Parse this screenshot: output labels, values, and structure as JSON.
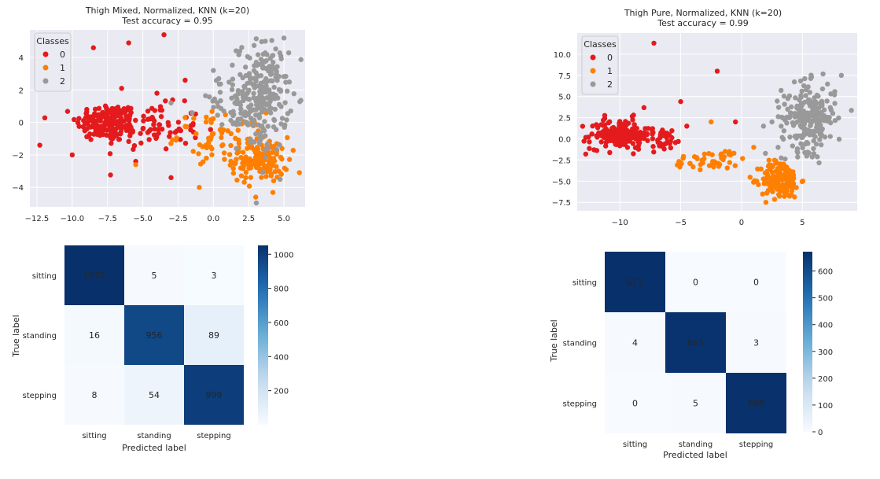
{
  "chart_data": [
    {
      "type": "scatter",
      "title": "Thigh Mixed, Normalized, KNN (k=20)",
      "subtitle": "Test accuracy = 0.95",
      "xlim": [
        -13,
        6.5
      ],
      "ylim": [
        -5.2,
        5.7
      ],
      "xticks": [
        -12.5,
        -10.0,
        -7.5,
        -5.0,
        -2.5,
        0.0,
        2.5,
        5.0
      ],
      "xtick_labels": [
        "−12.5",
        "−10.0",
        "−7.5",
        "−5.0",
        "−2.5",
        "0.0",
        "2.5",
        "5.0"
      ],
      "yticks": [
        -4,
        -2,
        0,
        2,
        4
      ],
      "ytick_labels": [
        "−4",
        "−2",
        "0",
        "2",
        "4"
      ],
      "grid": true,
      "legend": {
        "title": "Classes",
        "placement": "top-left",
        "entries": [
          "0",
          "1",
          "2"
        ]
      },
      "series": [
        {
          "name": "0",
          "color": "#e41a1c",
          "clusters": [
            [
              -7.5,
              0.0,
              1.1,
              0.6,
              170
            ],
            [
              -4.5,
              -0.3,
              1.8,
              0.7,
              90
            ]
          ],
          "outliers": [
            [
              -12.3,
              -1.4
            ],
            [
              -10.0,
              -2.0
            ],
            [
              -8.5,
              4.6
            ],
            [
              -6.0,
              4.9
            ],
            [
              -3.5,
              5.4
            ],
            [
              -5.5,
              -2.4
            ],
            [
              -3.0,
              -3.4
            ],
            [
              -2.0,
              2.6
            ],
            [
              -4.0,
              1.8
            ],
            [
              -6.5,
              2.1
            ]
          ]
        },
        {
          "name": "1",
          "color": "#ff7f00",
          "clusters": [
            [
              3.3,
              -2.3,
              1.0,
              0.7,
              150
            ],
            [
              0.5,
              -0.8,
              1.5,
              0.7,
              60
            ]
          ],
          "outliers": [
            [
              -1.0,
              -4.0
            ],
            [
              3.0,
              -4.6
            ],
            [
              -5.5,
              -2.6
            ],
            [
              -2.0,
              0.3
            ],
            [
              -0.5,
              -2.2
            ]
          ]
        },
        {
          "name": "2",
          "color": "#999999",
          "clusters": [
            [
              3.5,
              1.6,
              0.9,
              1.7,
              230
            ],
            [
              1.0,
              1.2,
              1.2,
              0.8,
              40
            ]
          ],
          "outliers": [
            [
              5.0,
              5.2
            ],
            [
              0.0,
              3.2
            ],
            [
              -1.5,
              0.6
            ],
            [
              -3.0,
              1.2
            ]
          ]
        }
      ]
    },
    {
      "type": "scatter",
      "title": "Thigh Pure, Normalized, KNN (k=20)",
      "subtitle": "Test accuracy = 0.99",
      "xlim": [
        -13.5,
        9.5
      ],
      "ylim": [
        -8.5,
        12.5
      ],
      "xticks": [
        -10,
        -5,
        0,
        5
      ],
      "xtick_labels": [
        "−10",
        "−5",
        "0",
        "5"
      ],
      "yticks": [
        -7.5,
        -5.0,
        -2.5,
        0.0,
        2.5,
        5.0,
        7.5,
        10.0
      ],
      "ytick_labels": [
        "−7.5",
        "−5.0",
        "−2.5",
        "0.0",
        "2.5",
        "5.0",
        "7.5",
        "10.0"
      ],
      "grid": true,
      "legend": {
        "title": "Classes",
        "placement": "top-left",
        "entries": [
          "0",
          "1",
          "2"
        ]
      },
      "series": [
        {
          "name": "0",
          "color": "#e41a1c",
          "clusters": [
            [
              -10.0,
              0.6,
              1.2,
              0.9,
              170
            ],
            [
              -6.5,
              0.0,
              1.0,
              0.7,
              40
            ]
          ],
          "outliers": [
            [
              -7.2,
              11.3
            ],
            [
              -2.0,
              8.0
            ],
            [
              -5.0,
              4.4
            ],
            [
              -12.8,
              -1.8
            ],
            [
              -0.5,
              2.0
            ],
            [
              -4.5,
              1.5
            ]
          ]
        },
        {
          "name": "1",
          "color": "#ff7f00",
          "clusters": [
            [
              3.2,
              -4.8,
              0.8,
              1.1,
              160
            ],
            [
              -2.5,
              -2.5,
              1.6,
              0.6,
              45
            ]
          ],
          "outliers": [
            [
              2.0,
              -7.5
            ],
            [
              -1.0,
              -1.5
            ],
            [
              -2.5,
              2.0
            ],
            [
              1.0,
              -1.0
            ]
          ]
        },
        {
          "name": "2",
          "color": "#999999",
          "clusters": [
            [
              5.5,
              2.5,
              1.1,
              2.0,
              230
            ]
          ],
          "outliers": [
            [
              1.8,
              1.5
            ],
            [
              2.5,
              2.0
            ],
            [
              8.2,
              7.5
            ],
            [
              3.0,
              -1.0
            ]
          ]
        }
      ]
    },
    {
      "type": "heatmap",
      "title": "",
      "xlabel": "Predicted label",
      "ylabel": "True label",
      "labels": [
        "sitting",
        "standing",
        "stepping"
      ],
      "matrix": [
        [
          1052,
          5,
          3
        ],
        [
          16,
          956,
          89
        ],
        [
          8,
          54,
          999
        ]
      ],
      "colorbar": {
        "min": 0,
        "max": 1052,
        "ticks": [
          200,
          400,
          600,
          800,
          1000
        ],
        "tick_labels": [
          "200",
          "400",
          "600",
          "800",
          "1000"
        ]
      },
      "colormap": "Blues"
    },
    {
      "type": "heatmap",
      "title": "",
      "xlabel": "Predicted label",
      "ylabel": "True label",
      "labels": [
        "sitting",
        "standing",
        "stepping"
      ],
      "matrix": [
        [
          672,
          0,
          0
        ],
        [
          4,
          665,
          3
        ],
        [
          0,
          5,
          668
        ]
      ],
      "colorbar": {
        "min": 0,
        "max": 672,
        "ticks": [
          0,
          100,
          200,
          300,
          400,
          500,
          600
        ],
        "tick_labels": [
          "0",
          "100",
          "200",
          "300",
          "400",
          "500",
          "600"
        ]
      },
      "colormap": "Blues"
    }
  ]
}
